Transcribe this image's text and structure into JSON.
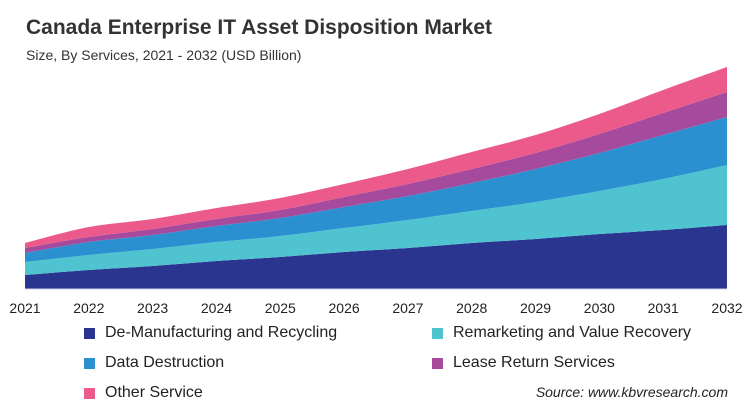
{
  "title": "Canada Enterprise IT Asset Disposition Market",
  "subtitle": "Size, By Services, 2021 - 2032 (USD Billion)",
  "source": "Source: www.kbvresearch.com",
  "chart_data": {
    "type": "area",
    "stacked": true,
    "title": "Canada Enterprise IT Asset Disposition Market",
    "subtitle": "Size, By Services, 2021 - 2032 (USD Billion)",
    "xlabel": "",
    "ylabel": "",
    "categories": [
      "2021",
      "2022",
      "2023",
      "2024",
      "2025",
      "2026",
      "2027",
      "2028",
      "2029",
      "2030",
      "2031",
      "2032"
    ],
    "ylim": [
      0,
      2.3
    ],
    "grid": false,
    "legend_position": "bottom",
    "series": [
      {
        "name": "De-Manufacturing and Recycling",
        "color": "#2a3590",
        "values": [
          0.14,
          0.19,
          0.23,
          0.28,
          0.32,
          0.37,
          0.41,
          0.46,
          0.5,
          0.55,
          0.59,
          0.64
        ]
      },
      {
        "name": "Remarketing and Value Recovery",
        "color": "#4fc4d0",
        "values": [
          0.13,
          0.15,
          0.17,
          0.19,
          0.21,
          0.24,
          0.28,
          0.32,
          0.37,
          0.43,
          0.51,
          0.6
        ]
      },
      {
        "name": "Data Destruction",
        "color": "#2b90d0",
        "values": [
          0.09,
          0.13,
          0.14,
          0.16,
          0.18,
          0.21,
          0.24,
          0.28,
          0.33,
          0.38,
          0.44,
          0.48
        ]
      },
      {
        "name": "Lease Return Services",
        "color": "#a64a9d",
        "values": [
          0.05,
          0.05,
          0.06,
          0.07,
          0.08,
          0.1,
          0.12,
          0.14,
          0.16,
          0.19,
          0.22,
          0.25
        ]
      },
      {
        "name": "Other Service",
        "color": "#eb5a8a",
        "values": [
          0.05,
          0.1,
          0.1,
          0.11,
          0.12,
          0.13,
          0.15,
          0.17,
          0.18,
          0.2,
          0.23,
          0.25
        ]
      }
    ]
  }
}
